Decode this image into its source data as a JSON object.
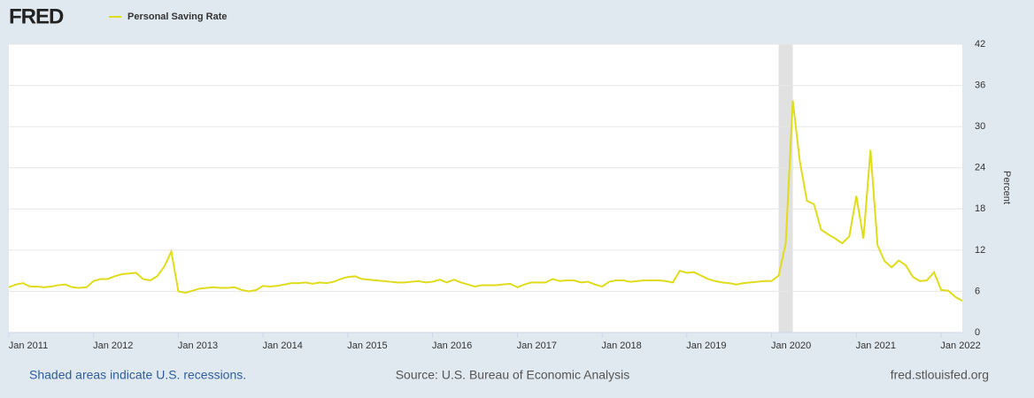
{
  "logo": "FRED",
  "chart_data": {
    "type": "line",
    "y_label": "Percent",
    "footer_left": "Shaded areas indicate U.S. recessions.",
    "footer_center": "Source: U.S. Bureau of Economic Analysis",
    "footer_right": "fred.stlouisfed.org",
    "ylim": [
      0,
      42
    ],
    "yticks": [
      0,
      6,
      12,
      18,
      24,
      30,
      36,
      42
    ],
    "xlim": [
      "2011-01",
      "2022-04"
    ],
    "xticks": [
      {
        "value": "2011-01",
        "label": "Jan 2011"
      },
      {
        "value": "2012-01",
        "label": "Jan 2012"
      },
      {
        "value": "2013-01",
        "label": "Jan 2013"
      },
      {
        "value": "2014-01",
        "label": "Jan 2014"
      },
      {
        "value": "2015-01",
        "label": "Jan 2015"
      },
      {
        "value": "2016-01",
        "label": "Jan 2016"
      },
      {
        "value": "2017-01",
        "label": "Jan 2017"
      },
      {
        "value": "2018-01",
        "label": "Jan 2018"
      },
      {
        "value": "2019-01",
        "label": "Jan 2019"
      },
      {
        "value": "2020-01",
        "label": "Jan 2020"
      },
      {
        "value": "2021-01",
        "label": "Jan 2021"
      },
      {
        "value": "2022-01",
        "label": "Jan 2022"
      }
    ],
    "grid": true,
    "recessions": [
      {
        "start": "2020-02",
        "end": "2020-04"
      }
    ],
    "x": [
      "2011-01",
      "2011-02",
      "2011-03",
      "2011-04",
      "2011-05",
      "2011-06",
      "2011-07",
      "2011-08",
      "2011-09",
      "2011-10",
      "2011-11",
      "2011-12",
      "2012-01",
      "2012-02",
      "2012-03",
      "2012-04",
      "2012-05",
      "2012-06",
      "2012-07",
      "2012-08",
      "2012-09",
      "2012-10",
      "2012-11",
      "2012-12",
      "2013-01",
      "2013-02",
      "2013-03",
      "2013-04",
      "2013-05",
      "2013-06",
      "2013-07",
      "2013-08",
      "2013-09",
      "2013-10",
      "2013-11",
      "2013-12",
      "2014-01",
      "2014-02",
      "2014-03",
      "2014-04",
      "2014-05",
      "2014-06",
      "2014-07",
      "2014-08",
      "2014-09",
      "2014-10",
      "2014-11",
      "2014-12",
      "2015-01",
      "2015-02",
      "2015-03",
      "2015-04",
      "2015-05",
      "2015-06",
      "2015-07",
      "2015-08",
      "2015-09",
      "2015-10",
      "2015-11",
      "2015-12",
      "2016-01",
      "2016-02",
      "2016-03",
      "2016-04",
      "2016-05",
      "2016-06",
      "2016-07",
      "2016-08",
      "2016-09",
      "2016-10",
      "2016-11",
      "2016-12",
      "2017-01",
      "2017-02",
      "2017-03",
      "2017-04",
      "2017-05",
      "2017-06",
      "2017-07",
      "2017-08",
      "2017-09",
      "2017-10",
      "2017-11",
      "2017-12",
      "2018-01",
      "2018-02",
      "2018-03",
      "2018-04",
      "2018-05",
      "2018-06",
      "2018-07",
      "2018-08",
      "2018-09",
      "2018-10",
      "2018-11",
      "2018-12",
      "2019-01",
      "2019-02",
      "2019-03",
      "2019-04",
      "2019-05",
      "2019-06",
      "2019-07",
      "2019-08",
      "2019-09",
      "2019-10",
      "2019-11",
      "2019-12",
      "2020-01",
      "2020-02",
      "2020-03",
      "2020-04",
      "2020-05",
      "2020-06",
      "2020-07",
      "2020-08",
      "2020-09",
      "2020-10",
      "2020-11",
      "2020-12",
      "2021-01",
      "2021-02",
      "2021-03",
      "2021-04",
      "2021-05",
      "2021-06",
      "2021-07",
      "2021-08",
      "2021-09",
      "2021-10",
      "2021-11",
      "2021-12",
      "2022-01",
      "2022-02",
      "2022-03",
      "2022-04"
    ],
    "series": [
      {
        "name": "Personal Saving Rate",
        "color": "#e0dc1c",
        "values": [
          6.6,
          7.0,
          7.2,
          6.7,
          6.7,
          6.6,
          6.7,
          6.9,
          7.0,
          6.6,
          6.5,
          6.6,
          7.5,
          7.8,
          7.8,
          8.2,
          8.5,
          8.6,
          8.7,
          7.8,
          7.6,
          8.2,
          9.6,
          11.8,
          6.0,
          5.8,
          6.1,
          6.4,
          6.5,
          6.6,
          6.5,
          6.5,
          6.6,
          6.2,
          6.0,
          6.2,
          6.8,
          6.7,
          6.8,
          7.0,
          7.2,
          7.2,
          7.3,
          7.1,
          7.3,
          7.2,
          7.4,
          7.8,
          8.1,
          8.2,
          7.8,
          7.7,
          7.6,
          7.5,
          7.4,
          7.3,
          7.3,
          7.4,
          7.5,
          7.3,
          7.4,
          7.7,
          7.3,
          7.7,
          7.3,
          7.0,
          6.7,
          6.9,
          6.9,
          6.9,
          7.0,
          7.1,
          6.6,
          7.0,
          7.3,
          7.3,
          7.3,
          7.8,
          7.5,
          7.6,
          7.6,
          7.3,
          7.4,
          7.0,
          6.7,
          7.4,
          7.6,
          7.6,
          7.4,
          7.5,
          7.6,
          7.6,
          7.6,
          7.5,
          7.3,
          9.0,
          8.7,
          8.8,
          8.3,
          7.8,
          7.5,
          7.3,
          7.2,
          7.0,
          7.2,
          7.3,
          7.4,
          7.5,
          7.5,
          8.3,
          13.0,
          33.8,
          24.9,
          19.2,
          18.7,
          15.0,
          14.3,
          13.7,
          13.0,
          14.0,
          19.9,
          13.7,
          26.6,
          12.7,
          10.4,
          9.5,
          10.5,
          9.8,
          8.1,
          7.5,
          7.6,
          8.8,
          6.2,
          6.1,
          5.2,
          4.6
        ]
      }
    ]
  }
}
